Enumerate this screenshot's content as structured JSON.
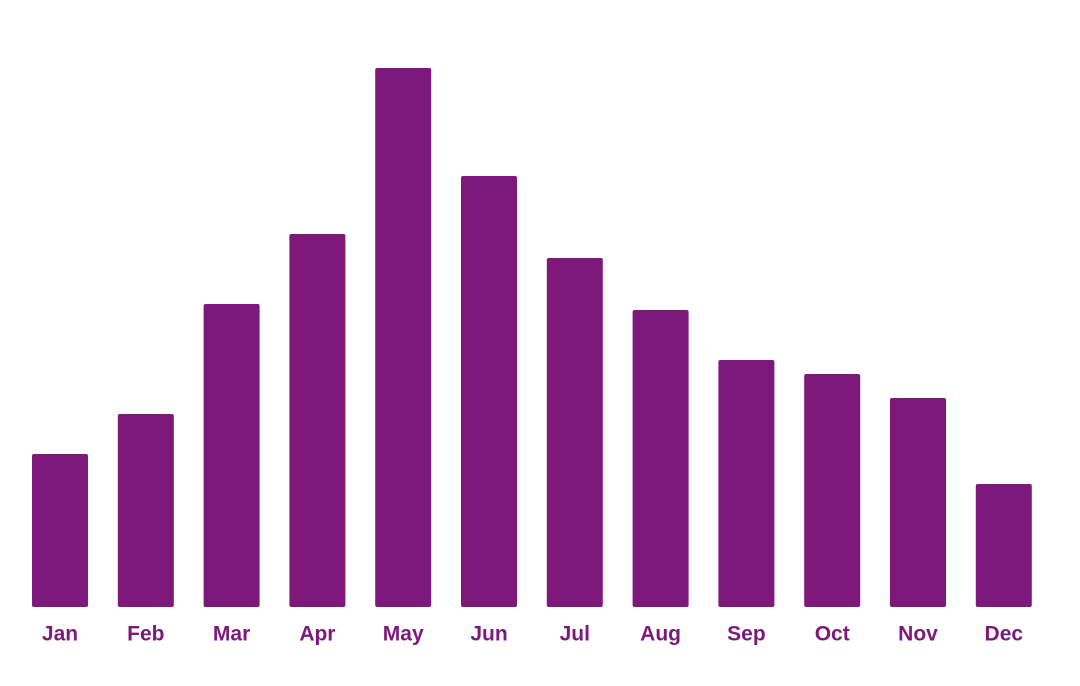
{
  "chart_data": {
    "type": "bar",
    "categories": [
      "Jan",
      "Feb",
      "Mar",
      "Apr",
      "May",
      "Jun",
      "Jul",
      "Aug",
      "Sep",
      "Oct",
      "Nov",
      "Dec"
    ],
    "values": [
      153,
      193,
      303,
      373,
      539,
      431,
      349,
      297,
      247,
      233,
      209,
      123
    ],
    "color": "#7e197b"
  }
}
